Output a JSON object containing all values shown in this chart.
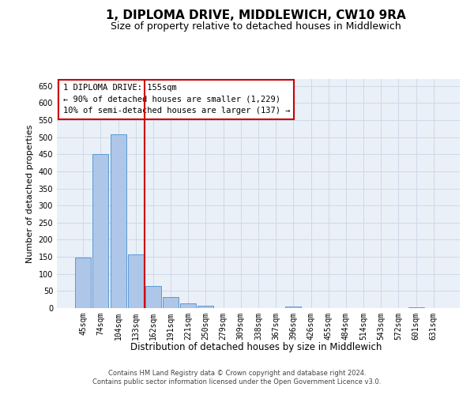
{
  "title": "1, DIPLOMA DRIVE, MIDDLEWICH, CW10 9RA",
  "subtitle": "Size of property relative to detached houses in Middlewich",
  "xlabel": "Distribution of detached houses by size in Middlewich",
  "ylabel": "Number of detached properties",
  "categories": [
    "45sqm",
    "74sqm",
    "104sqm",
    "133sqm",
    "162sqm",
    "191sqm",
    "221sqm",
    "250sqm",
    "279sqm",
    "309sqm",
    "338sqm",
    "367sqm",
    "396sqm",
    "426sqm",
    "455sqm",
    "484sqm",
    "514sqm",
    "543sqm",
    "572sqm",
    "601sqm",
    "631sqm"
  ],
  "values": [
    147,
    450,
    508,
    157,
    65,
    32,
    13,
    6,
    0,
    0,
    0,
    0,
    5,
    0,
    0,
    0,
    0,
    0,
    0,
    3,
    0
  ],
  "bar_color": "#aec6e8",
  "bar_edge_color": "#5b9bd5",
  "red_line_color": "#cc0000",
  "annotation_text": "1 DIPLOMA DRIVE: 155sqm\n← 90% of detached houses are smaller (1,229)\n10% of semi-detached houses are larger (137) →",
  "annotation_box_color": "#ffffff",
  "annotation_box_edge_color": "#cc0000",
  "footer": "Contains HM Land Registry data © Crown copyright and database right 2024.\nContains public sector information licensed under the Open Government Licence v3.0.",
  "background_color": "#ffffff",
  "grid_color": "#d0d8e8",
  "ylim": [
    0,
    670
  ],
  "title_fontsize": 11,
  "subtitle_fontsize": 9,
  "ylabel_fontsize": 8,
  "xlabel_fontsize": 8.5,
  "tick_fontsize": 7,
  "annotation_fontsize": 7.5,
  "footer_fontsize": 6
}
